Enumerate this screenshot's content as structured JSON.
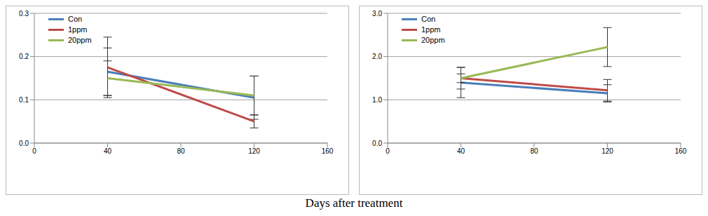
{
  "xlabel": "Days after treatment",
  "chart_data": [
    {
      "type": "line",
      "x": [
        40,
        120
      ],
      "xlim": [
        0,
        160
      ],
      "xticks": [
        0,
        40,
        80,
        120,
        160
      ],
      "ylim": [
        0,
        0.3
      ],
      "yticks": [
        {
          "value": 0,
          "label": "0.0"
        },
        0.1,
        0.2,
        0.3
      ],
      "grid": true,
      "legend": "upper left",
      "series": [
        {
          "name": "Con",
          "color": "#4a7ebb",
          "values": [
            0.165,
            0.105
          ],
          "errors": [
            0.055,
            0.05
          ]
        },
        {
          "name": "1ppm",
          "color": "#be4b48",
          "values": [
            0.175,
            0.05
          ],
          "errors": [
            0.07,
            0.015
          ]
        },
        {
          "name": "20ppm",
          "color": "#98b954",
          "values": [
            0.15,
            0.11
          ],
          "errors": [
            0.04,
            0.045
          ]
        }
      ]
    },
    {
      "type": "line",
      "x": [
        40,
        120
      ],
      "xlim": [
        0,
        160
      ],
      "xticks": [
        0,
        40,
        80,
        120,
        160
      ],
      "ylim": [
        0,
        3.0
      ],
      "yticks": [
        {
          "value": 0,
          "label": "0.0"
        },
        {
          "value": 1,
          "label": "1.0"
        },
        {
          "value": 2,
          "label": "2.0"
        },
        {
          "value": 3,
          "label": "3.0"
        }
      ],
      "grid": true,
      "legend": "upper left",
      "series": [
        {
          "name": "Con",
          "color": "#4a7ebb",
          "values": [
            1.4,
            1.15
          ],
          "errors": [
            0.35,
            0.2
          ]
        },
        {
          "name": "1ppm",
          "color": "#be4b48",
          "values": [
            1.5,
            1.22
          ],
          "errors": [
            0.25,
            0.25
          ]
        },
        {
          "name": "20ppm",
          "color": "#98b954",
          "values": [
            1.5,
            2.22
          ],
          "errors": [
            0.1,
            0.45
          ]
        }
      ]
    }
  ]
}
